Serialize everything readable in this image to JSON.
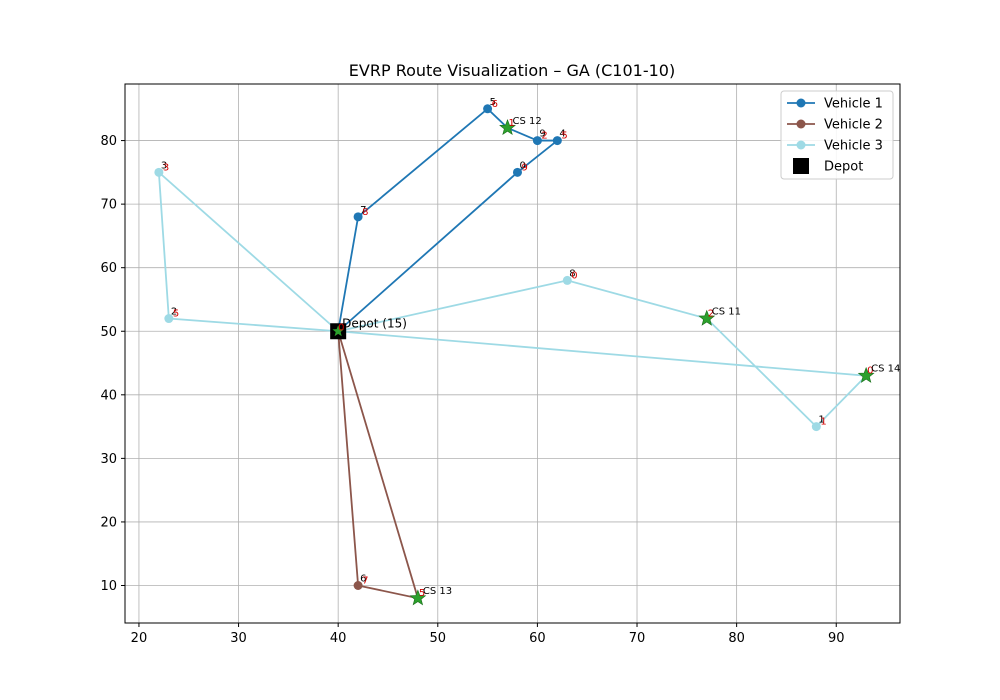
{
  "chart_data": {
    "type": "line",
    "title": "EVRP Route Visualization – GA (C101-10)",
    "xlabel": "",
    "ylabel": "",
    "xlim": [
      18.6,
      96.4
    ],
    "ylim": [
      4.1,
      88.9
    ],
    "xticks": [
      20,
      30,
      40,
      50,
      60,
      70,
      80,
      90
    ],
    "yticks": [
      10,
      20,
      30,
      40,
      50,
      60,
      70,
      80
    ],
    "grid": true,
    "legend_position": "top-right",
    "colors": {
      "vehicle1": "#1f77b4",
      "vehicle2": "#8c564b",
      "vehicle3": "#9edae5",
      "depot": "#000000",
      "station_star": "#2ca02c",
      "visit_order": "#d40000"
    },
    "legend": [
      "Vehicle 1",
      "Vehicle 2",
      "Vehicle 3",
      "Depot"
    ],
    "series": [
      {
        "name": "Vehicle 1",
        "color": "#1f77b4",
        "points": [
          {
            "x": 40,
            "y": 50
          },
          {
            "x": 42,
            "y": 68,
            "label": "7",
            "order": "8"
          },
          {
            "x": 55,
            "y": 85,
            "label": "5",
            "order": "6"
          },
          {
            "x": 57,
            "y": 82
          },
          {
            "x": 60,
            "y": 80,
            "label": "9",
            "order": "2"
          },
          {
            "x": 62,
            "y": 80,
            "label": "4",
            "order": "5"
          },
          {
            "x": 58,
            "y": 75,
            "label": "0",
            "order": "9"
          },
          {
            "x": 40,
            "y": 50
          }
        ]
      },
      {
        "name": "Vehicle 2",
        "color": "#8c564b",
        "points": [
          {
            "x": 40,
            "y": 50
          },
          {
            "x": 42,
            "y": 10,
            "label": "6",
            "order": "7"
          },
          {
            "x": 48,
            "y": 8
          },
          {
            "x": 40,
            "y": 50
          }
        ]
      },
      {
        "name": "Vehicle 3",
        "color": "#9edae5",
        "points": [
          {
            "x": 40,
            "y": 50
          },
          {
            "x": 63,
            "y": 58,
            "label": "8",
            "order": "0"
          },
          {
            "x": 77,
            "y": 52
          },
          {
            "x": 88,
            "y": 35,
            "label": "1",
            "order": "1"
          },
          {
            "x": 93,
            "y": 43
          },
          {
            "x": 40,
            "y": 50
          },
          {
            "x": 23,
            "y": 52,
            "label": "2",
            "order": "5"
          },
          {
            "x": 22,
            "y": 75,
            "label": "3",
            "order": "3"
          },
          {
            "x": 40,
            "y": 50
          }
        ]
      }
    ],
    "stations": [
      {
        "label": "CS 12",
        "x": 57,
        "y": 82,
        "order": "1"
      },
      {
        "label": "CS 11",
        "x": 77,
        "y": 52,
        "order": "2"
      },
      {
        "label": "CS 14",
        "x": 93,
        "y": 43,
        "order": "0"
      },
      {
        "label": "CS 13",
        "x": 48,
        "y": 8,
        "order": "5"
      }
    ],
    "depot": {
      "label": "Depot (15)",
      "x": 40,
      "y": 50,
      "order": "0"
    }
  }
}
